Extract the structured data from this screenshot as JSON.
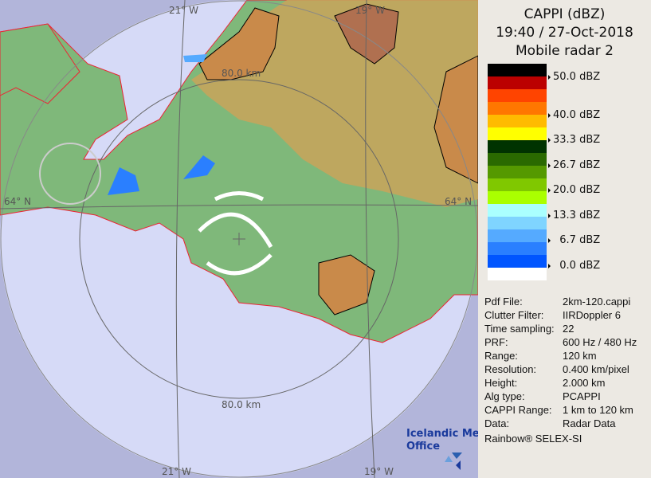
{
  "header": {
    "line1": "CAPPI (dBZ)",
    "line2": "19:40 / 27-Oct-2018",
    "line3": "Mobile radar 2"
  },
  "legend": {
    "colors": [
      "#000000",
      "#bb0000",
      "#ff4400",
      "#ff7700",
      "#ffbb00",
      "#ffff00",
      "#003300",
      "#2a6a00",
      "#559900",
      "#80c800",
      "#aaff00",
      "#aaffff",
      "#7fd4ff",
      "#55aaff",
      "#2a7fff",
      "#0055ff",
      "#ffffff"
    ],
    "labels": [
      "50.0 dBZ",
      "40.0 dBZ",
      "33.3 dBZ",
      "26.7 dBZ",
      "20.0 dBZ",
      "13.3 dBZ",
      "  6.7 dBZ",
      "  0.0 dBZ"
    ]
  },
  "info": [
    {
      "key": "Pdf File:",
      "value": "2km-120.cappi"
    },
    {
      "key": "Clutter Filter:",
      "value": "IIRDoppler 6"
    },
    {
      "key": "Time sampling:",
      "value": "22"
    },
    {
      "key": "PRF:",
      "value": "600 Hz / 480 Hz"
    },
    {
      "key": "Range:",
      "value": "120 km"
    },
    {
      "key": "Resolution:",
      "value": "0.400 km/pixel"
    },
    {
      "key": "Height:",
      "value": "2.000 km"
    },
    {
      "key": "Alg type:",
      "value": "PCAPPI"
    },
    {
      "key": "CAPPI Range:",
      "value": "1 km to 120 km"
    },
    {
      "key": "Data:",
      "value": "Radar Data"
    }
  ],
  "footer": "Rainbow® SELEX-SI",
  "map": {
    "lon_labels": [
      "21° W",
      "19° W"
    ],
    "lat_label": "64° N",
    "range_ring_label": "80.0 km",
    "logo": {
      "line1": "Icelandic Met",
      "line2": "Office"
    }
  }
}
